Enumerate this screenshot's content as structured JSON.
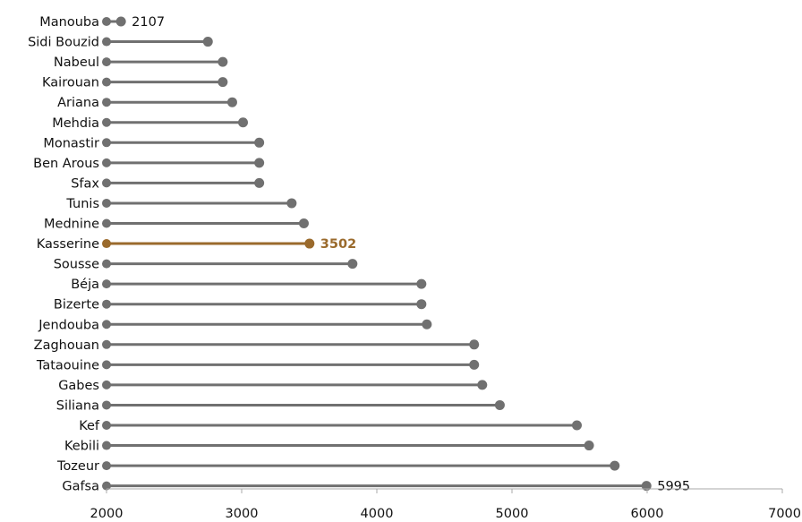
{
  "chart_data": {
    "type": "lollipop",
    "title": "",
    "xlabel": "",
    "ylabel": "",
    "xlim": [
      2000,
      7000
    ],
    "x_ticks": [
      2000,
      3000,
      4000,
      5000,
      6000,
      7000
    ],
    "grid": false,
    "legend": "none",
    "base_color": "#707070",
    "highlight_color": "#9a6a2c",
    "highlight_category": "Kasserine",
    "categories": [
      "Manouba",
      "Sidi Bouzid",
      "Nabeul",
      "Kairouan",
      "Ariana",
      "Mehdia",
      "Monastir",
      "Ben Arous",
      "Sfax",
      "Tunis",
      "Mednine",
      "Kasserine",
      "Sousse",
      "Béja",
      "Bizerte",
      "Jendouba",
      "Zaghouan",
      "Tataouine",
      "Gabes",
      "Siliana",
      "Kef",
      "Kebili",
      "Tozeur",
      "Gafsa"
    ],
    "values": [
      2107,
      2750,
      2860,
      2860,
      2930,
      3010,
      3130,
      3130,
      3130,
      3370,
      3460,
      3502,
      3820,
      4330,
      4330,
      4370,
      4720,
      4720,
      4780,
      4910,
      5480,
      5570,
      5760,
      5995
    ],
    "data_labels": [
      {
        "category": "Manouba",
        "text": "2107"
      },
      {
        "category": "Kasserine",
        "text": "3502"
      },
      {
        "category": "Gafsa",
        "text": "5995"
      }
    ]
  }
}
